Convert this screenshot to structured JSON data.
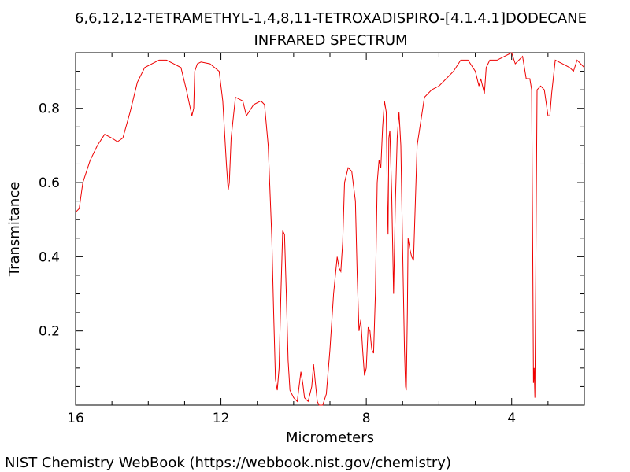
{
  "chart_data": {
    "type": "line",
    "title": "6,6,12,12-TETRAMETHYL-1,4,8,11-TETROXADISPIRO-[4.1.4.1]DODECANE",
    "subtitle": "INFRARED SPECTRUM",
    "xlabel": "Micrometers",
    "ylabel": "Transmitance",
    "xlim": [
      16,
      2
    ],
    "ylim": [
      0.0,
      0.95
    ],
    "x_ticks": [
      16,
      12,
      8,
      4
    ],
    "x_tick_labels": [
      "16",
      "12",
      "8",
      "4"
    ],
    "y_ticks": [
      0.2,
      0.4,
      0.6,
      0.8
    ],
    "y_tick_labels": [
      "0.2",
      "0.4",
      "0.6",
      "0.8"
    ],
    "grid": false,
    "line_color": "#ee0000",
    "series": [
      {
        "x": [
          16.0,
          15.9,
          15.8,
          15.6,
          15.4,
          15.2,
          15.0,
          14.85,
          14.7,
          14.5,
          14.3,
          14.1,
          13.9,
          13.7,
          13.5,
          13.3,
          13.1,
          12.95,
          12.8,
          12.75,
          12.72,
          12.65,
          12.55,
          12.3,
          12.05,
          11.95,
          11.85,
          11.8,
          11.77,
          11.72,
          11.6,
          11.4,
          11.3,
          11.1,
          10.9,
          10.8,
          10.7,
          10.6,
          10.55,
          10.5,
          10.45,
          10.4,
          10.35,
          10.3,
          10.25,
          10.2,
          10.15,
          10.1,
          10.0,
          9.9,
          9.8,
          9.75,
          9.7,
          9.6,
          9.5,
          9.45,
          9.4,
          9.35,
          9.3,
          9.2,
          9.1,
          9.0,
          8.9,
          8.8,
          8.75,
          8.7,
          8.65,
          8.6,
          8.5,
          8.4,
          8.3,
          8.25,
          8.2,
          8.15,
          8.1,
          8.05,
          8.0,
          7.95,
          7.9,
          7.85,
          7.8,
          7.75,
          7.7,
          7.65,
          7.6,
          7.55,
          7.5,
          7.45,
          7.42,
          7.4,
          7.38,
          7.35,
          7.3,
          7.25,
          7.2,
          7.15,
          7.1,
          7.05,
          7.0,
          6.95,
          6.92,
          6.9,
          6.87,
          6.85,
          6.8,
          6.75,
          6.7,
          6.6,
          6.4,
          6.2,
          6.0,
          5.8,
          5.6,
          5.4,
          5.2,
          5.0,
          4.9,
          4.85,
          4.8,
          4.75,
          4.7,
          4.6,
          4.4,
          4.2,
          4.0,
          3.9,
          3.8,
          3.7,
          3.6,
          3.5,
          3.45,
          3.42,
          3.4,
          3.38,
          3.36,
          3.3,
          3.2,
          3.1,
          3.0,
          2.95,
          2.9,
          2.8,
          2.6,
          2.4,
          2.3,
          2.2,
          2.1,
          2.0
        ],
        "values": [
          0.52,
          0.53,
          0.6,
          0.66,
          0.7,
          0.73,
          0.72,
          0.71,
          0.72,
          0.79,
          0.87,
          0.91,
          0.92,
          0.93,
          0.93,
          0.92,
          0.91,
          0.85,
          0.78,
          0.8,
          0.9,
          0.92,
          0.925,
          0.92,
          0.9,
          0.82,
          0.65,
          0.58,
          0.6,
          0.72,
          0.83,
          0.82,
          0.78,
          0.81,
          0.82,
          0.81,
          0.7,
          0.45,
          0.25,
          0.07,
          0.04,
          0.1,
          0.3,
          0.47,
          0.46,
          0.3,
          0.12,
          0.04,
          0.02,
          0.01,
          0.09,
          0.06,
          0.02,
          0.01,
          0.05,
          0.11,
          0.06,
          0.01,
          0.0,
          0.0,
          0.03,
          0.15,
          0.3,
          0.4,
          0.37,
          0.36,
          0.44,
          0.6,
          0.64,
          0.63,
          0.55,
          0.35,
          0.2,
          0.23,
          0.15,
          0.08,
          0.1,
          0.21,
          0.2,
          0.15,
          0.14,
          0.3,
          0.6,
          0.66,
          0.64,
          0.75,
          0.82,
          0.79,
          0.55,
          0.46,
          0.72,
          0.74,
          0.57,
          0.3,
          0.55,
          0.72,
          0.79,
          0.7,
          0.42,
          0.15,
          0.05,
          0.04,
          0.25,
          0.45,
          0.42,
          0.4,
          0.39,
          0.7,
          0.83,
          0.85,
          0.86,
          0.88,
          0.9,
          0.93,
          0.93,
          0.9,
          0.86,
          0.88,
          0.86,
          0.84,
          0.91,
          0.93,
          0.93,
          0.94,
          0.95,
          0.92,
          0.93,
          0.94,
          0.88,
          0.88,
          0.85,
          0.4,
          0.06,
          0.1,
          0.02,
          0.85,
          0.86,
          0.85,
          0.78,
          0.78,
          0.84,
          0.93,
          0.92,
          0.91,
          0.9,
          0.93,
          0.92,
          0.91
        ]
      }
    ],
    "credit": "NIST Chemistry WebBook (https://webbook.nist.gov/chemistry)"
  }
}
